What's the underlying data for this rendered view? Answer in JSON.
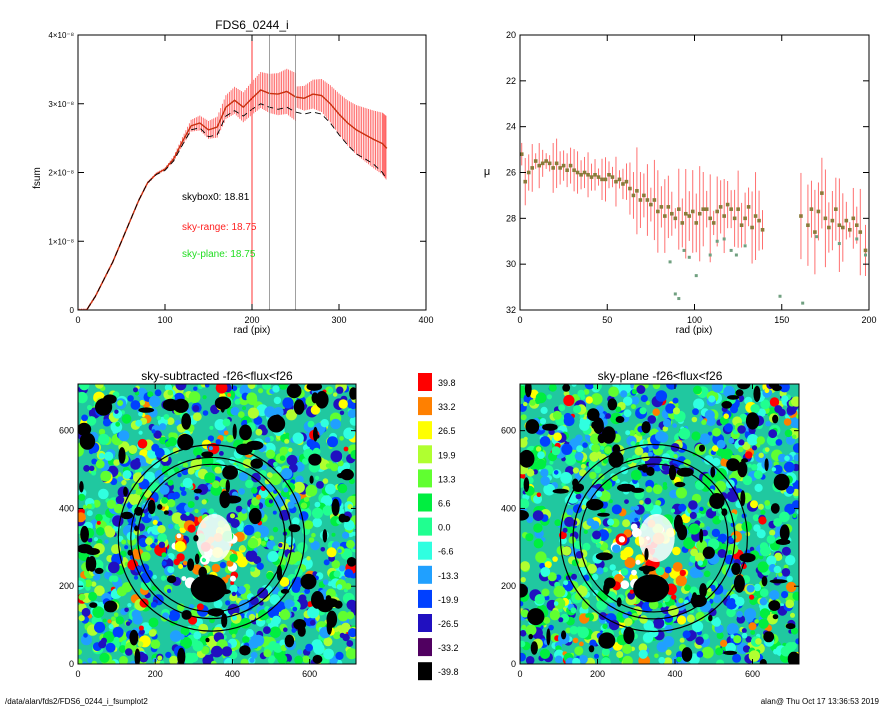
{
  "footer": {
    "path": "/data/alan/fds2/FDS6_0244_i_fsumplot2",
    "stamp": "alan@  Thu Oct 17 13:36:53 2019"
  },
  "chart_data": [
    {
      "type": "line",
      "title": "FDS6_0244_i",
      "xlabel": "rad (pix)",
      "ylabel": "fsum",
      "xlim": [
        0,
        400
      ],
      "ylim": [
        0,
        4e-08
      ],
      "xticks": [
        "0",
        "100",
        "200",
        "300",
        "400"
      ],
      "yticks": [
        "0",
        "1×10⁻⁸",
        "2×10⁻⁸",
        "3×10⁻⁸",
        "4×10⁻⁸"
      ],
      "series": [
        {
          "style": "solid-orange-red",
          "x": [
            0,
            10,
            20,
            30,
            40,
            50,
            60,
            70,
            80,
            90,
            100,
            110,
            120,
            130,
            140,
            150,
            160,
            170,
            180,
            190,
            200,
            210,
            220,
            230,
            240,
            250,
            260,
            270,
            280,
            290,
            300,
            310,
            320,
            330,
            340,
            350,
            355
          ],
          "y": [
            0,
            2e-11,
            2e-09,
            4.5e-09,
            7e-09,
            1e-08,
            1.3e-08,
            1.6e-08,
            1.85e-08,
            1.98e-08,
            2.05e-08,
            2.2e-08,
            2.45e-08,
            2.68e-08,
            2.72e-08,
            2.62e-08,
            2.66e-08,
            2.95e-08,
            3.05e-08,
            2.95e-08,
            3.08e-08,
            3.2e-08,
            3.15e-08,
            3.14e-08,
            3.18e-08,
            3.1e-08,
            3.08e-08,
            3.14e-08,
            3.12e-08,
            3e-08,
            2.85e-08,
            2.72e-08,
            2.62e-08,
            2.55e-08,
            2.48e-08,
            2.42e-08,
            2.35e-08
          ]
        },
        {
          "style": "dashed-black",
          "x": [
            0,
            10,
            20,
            30,
            40,
            50,
            60,
            70,
            80,
            90,
            100,
            110,
            120,
            130,
            140,
            150,
            160,
            170,
            180,
            190,
            200,
            210,
            220,
            230,
            240,
            250,
            260,
            270,
            280,
            290,
            300,
            310,
            320,
            330,
            340,
            350,
            355
          ],
          "y": [
            0,
            2e-11,
            2e-09,
            4.5e-09,
            7e-09,
            1e-08,
            1.3e-08,
            1.6e-08,
            1.85e-08,
            1.97e-08,
            2.03e-08,
            2.17e-08,
            2.4e-08,
            2.62e-08,
            2.65e-08,
            2.52e-08,
            2.55e-08,
            2.82e-08,
            2.9e-08,
            2.82e-08,
            2.92e-08,
            3e-08,
            2.95e-08,
            2.92e-08,
            2.95e-08,
            2.88e-08,
            2.85e-08,
            2.88e-08,
            2.85e-08,
            2.72e-08,
            2.55e-08,
            2.4e-08,
            2.27e-08,
            2.2e-08,
            2.12e-08,
            2e-08,
            1.9e-08
          ]
        }
      ],
      "vlines": [
        {
          "x": 200,
          "color": "#ff0000"
        },
        {
          "x": 220,
          "color": "#888888"
        },
        {
          "x": 250,
          "color": "#888888"
        }
      ],
      "annotations": [
        {
          "text": "skybox0: 18.81",
          "color": "#000000"
        },
        {
          "text": "sky-range: 18.75",
          "color": "#ff2020"
        },
        {
          "text": "sky-plane: 18.75",
          "color": "#22dd22"
        }
      ]
    },
    {
      "type": "scatter",
      "title": "",
      "xlabel": "rad (pix)",
      "ylabel": "μ",
      "xlim": [
        0,
        200
      ],
      "ylim": [
        32,
        20
      ],
      "xticks": [
        "0",
        "50",
        "100",
        "150",
        "200"
      ],
      "yticks": [
        "20",
        "22",
        "24",
        "26",
        "28",
        "30",
        "32"
      ],
      "points": [
        [
          1,
          25.2
        ],
        [
          3,
          26.4
        ],
        [
          5,
          26.0
        ],
        [
          7,
          25.8
        ],
        [
          9,
          25.5
        ],
        [
          11,
          25.7
        ],
        [
          13,
          25.6
        ],
        [
          15,
          25.5
        ],
        [
          17,
          25.6
        ],
        [
          19,
          25.8
        ],
        [
          21,
          25.6
        ],
        [
          23,
          25.8
        ],
        [
          25,
          25.7
        ],
        [
          27,
          25.9
        ],
        [
          29,
          25.7
        ],
        [
          31,
          25.9
        ],
        [
          33,
          26.0
        ],
        [
          35,
          26.1
        ],
        [
          37,
          26.0
        ],
        [
          39,
          26.1
        ],
        [
          41,
          26.2
        ],
        [
          43,
          26.1
        ],
        [
          45,
          26.2
        ],
        [
          47,
          26.3
        ],
        [
          49,
          26.3
        ],
        [
          51,
          26.1
        ],
        [
          53,
          26.2
        ],
        [
          55,
          26.4
        ],
        [
          57,
          26.3
        ],
        [
          59,
          26.5
        ],
        [
          61,
          26.4
        ],
        [
          63,
          26.7
        ],
        [
          65,
          27.0
        ],
        [
          67,
          26.8
        ],
        [
          69,
          27.2
        ],
        [
          71,
          27.0
        ],
        [
          73,
          27.2
        ],
        [
          75,
          27.4
        ],
        [
          77,
          27.2
        ],
        [
          79,
          27.7
        ],
        [
          81,
          27.5
        ],
        [
          83,
          27.9
        ],
        [
          85,
          27.5
        ],
        [
          87,
          27.8
        ],
        [
          89,
          28.0
        ],
        [
          91,
          27.6
        ],
        [
          93,
          28.2
        ],
        [
          95,
          27.8
        ],
        [
          97,
          27.9
        ],
        [
          99,
          27.7
        ],
        [
          101,
          28.2
        ],
        [
          103,
          27.8
        ],
        [
          105,
          27.6
        ],
        [
          107,
          27.6
        ],
        [
          109,
          28.0
        ],
        [
          111,
          28.2
        ],
        [
          113,
          27.7
        ],
        [
          115,
          27.5
        ],
        [
          117,
          27.9
        ],
        [
          119,
          27.4
        ],
        [
          121,
          27.6
        ],
        [
          123,
          28.0
        ],
        [
          125,
          27.6
        ],
        [
          127,
          28.3
        ],
        [
          129,
          28.0
        ],
        [
          131,
          27.5
        ],
        [
          133,
          28.4
        ],
        [
          135,
          27.9
        ],
        [
          137,
          28.1
        ],
        [
          139,
          28.5
        ],
        [
          161,
          27.9
        ],
        [
          165,
          28.3
        ],
        [
          167,
          27.6
        ],
        [
          169,
          28.6
        ],
        [
          171,
          27.7
        ],
        [
          173,
          26.9
        ],
        [
          175,
          28.0
        ],
        [
          177,
          28.4
        ],
        [
          179,
          28.1
        ],
        [
          181,
          27.6
        ],
        [
          183,
          28.3
        ],
        [
          185,
          28.4
        ],
        [
          187,
          28.1
        ],
        [
          189,
          28.5
        ],
        [
          191,
          28.0
        ],
        [
          193,
          28.3
        ],
        [
          195,
          28.6
        ],
        [
          198,
          29.4
        ]
      ],
      "points_faint": [
        [
          86,
          29.9
        ],
        [
          89,
          31.3
        ],
        [
          91,
          31.5
        ],
        [
          94,
          29.4
        ],
        [
          97,
          29.7
        ],
        [
          101,
          30.5
        ],
        [
          109,
          29.6
        ],
        [
          113,
          29.0
        ],
        [
          117,
          28.9
        ],
        [
          121,
          29.4
        ],
        [
          124,
          29.6
        ],
        [
          129,
          29.2
        ],
        [
          149,
          31.4
        ],
        [
          162,
          31.7
        ],
        [
          170,
          28.8
        ],
        [
          183,
          29.1
        ],
        [
          193,
          28.9
        ],
        [
          198,
          29.6
        ]
      ]
    },
    {
      "type": "heatmap",
      "title": "sky-subtracted -f26<flux<f26",
      "xlim": [
        0,
        720
      ],
      "ylim": [
        0,
        720
      ],
      "xticks": [
        "0",
        "200",
        "400",
        "600"
      ],
      "yticks": [
        "0",
        "200",
        "400",
        "600"
      ]
    },
    {
      "type": "heatmap",
      "title": "sky-plane -f26<flux<f26",
      "xlim": [
        0,
        720
      ],
      "ylim": [
        0,
        720
      ],
      "xticks": [
        "0",
        "200",
        "400",
        "600"
      ],
      "yticks": [
        "0",
        "200",
        "400",
        "600"
      ]
    },
    {
      "type": "table",
      "title": "",
      "legend_labels": [
        "39.8",
        "33.2",
        "26.5",
        "19.9",
        "13.3",
        "6.6",
        "0.0",
        "-6.6",
        "-13.3",
        "-19.9",
        "-26.5",
        "-33.2",
        "-39.8"
      ],
      "legend_colors": [
        "#ff0000",
        "#ff8000",
        "#ffff00",
        "#b0ff30",
        "#60ff30",
        "#00ee40",
        "#20ff90",
        "#30ffe0",
        "#20a0ff",
        "#0040ff",
        "#2010c0",
        "#500060",
        "#000000"
      ]
    }
  ]
}
